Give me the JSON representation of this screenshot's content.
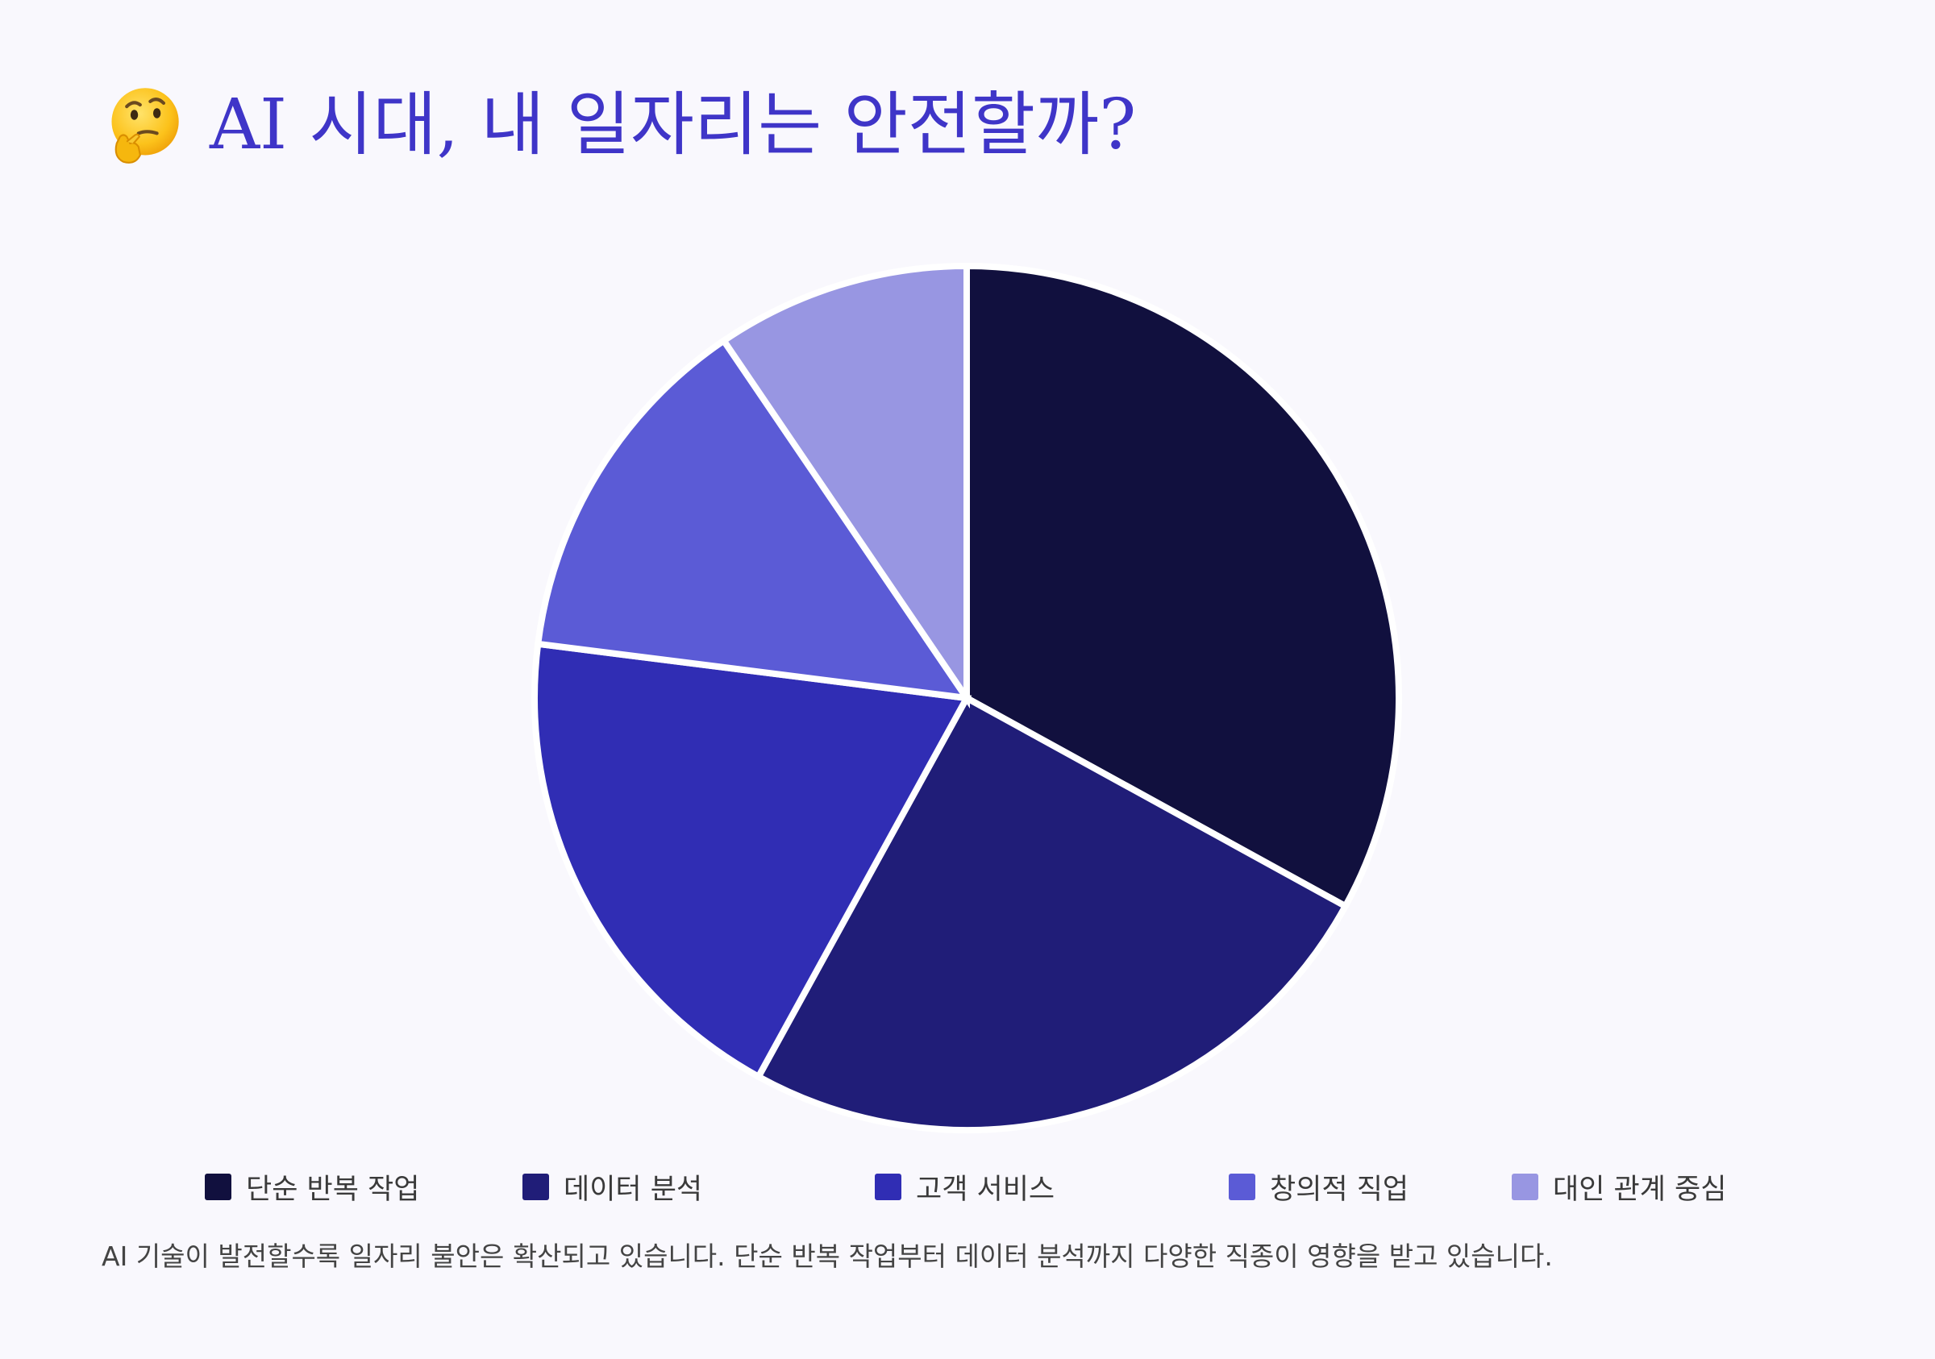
{
  "title": {
    "emoji_icon": "thinking-face-icon",
    "text": "AI 시대, 내 일자리는 안전할까?",
    "color": "#3f35c8"
  },
  "chart_data": {
    "type": "pie",
    "categories": [
      "단순 반복 작업",
      "데이터 분석",
      "고객 서비스",
      "창의적 직업",
      "대인 관계 중심"
    ],
    "values": [
      33,
      25,
      19,
      13.5,
      9.5
    ],
    "colors": [
      "#11103e",
      "#201d78",
      "#302db4",
      "#5b5bd6",
      "#9896e2"
    ],
    "start_angle": "12 o'clock",
    "direction": "clockwise",
    "legend_position": "bottom",
    "slice_border_color": "#ffffff"
  },
  "footer": {
    "text": "AI 기술이 발전할수록 일자리 불안은 확산되고 있습니다. 단순 반복 작업부터 데이터 분석까지 다양한 직종이 영향을 받고 있습니다."
  }
}
